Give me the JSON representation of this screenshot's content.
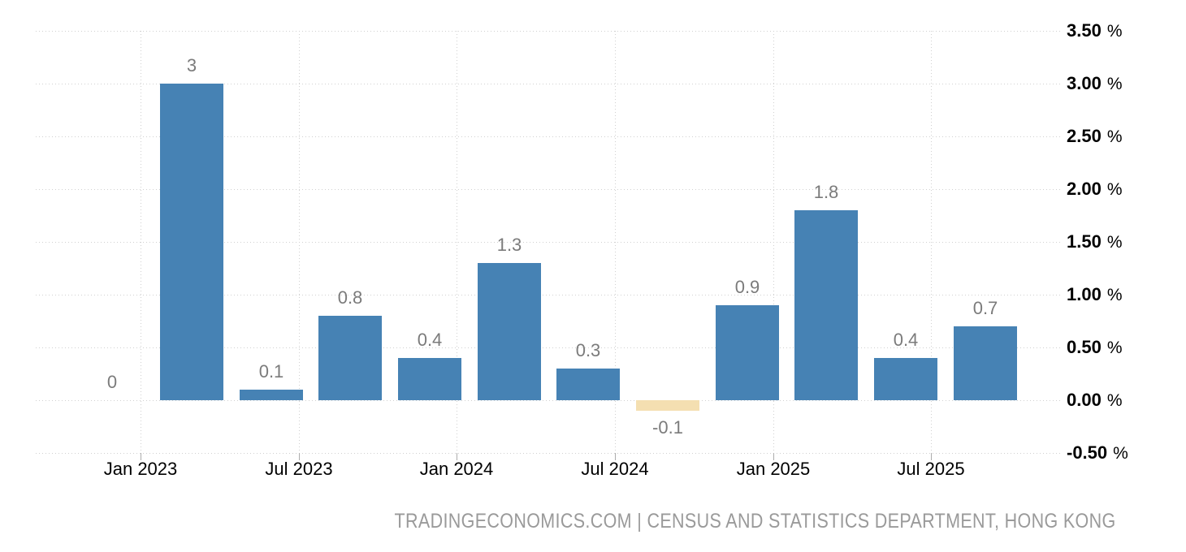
{
  "chart_data": {
    "type": "bar",
    "title": "",
    "xlabel": "",
    "ylabel": "",
    "values": [
      0,
      3,
      0.1,
      0.8,
      0.4,
      1.3,
      0.3,
      -0.1,
      0.9,
      1.8,
      0.4,
      0.7
    ],
    "bar_labels": [
      "0",
      "3",
      "0.1",
      "0.8",
      "0.4",
      "1.3",
      "0.3",
      "-0.1",
      "0.9",
      "1.8",
      "0.4",
      "0.7"
    ],
    "highlight_index": 7,
    "x_tick_labels": [
      "Jan 2023",
      "Jul 2023",
      "Jan 2024",
      "Jul 2024",
      "Jan 2025",
      "Jul 2025"
    ],
    "y_tick_labels": [
      "3.50 %",
      "3.00 %",
      "2.50 %",
      "2.00 %",
      "1.50 %",
      "1.00 %",
      "0.50 %",
      "0.00 %",
      "-0.50 %"
    ],
    "y_axis_unit": "%",
    "ylim": [
      -0.5,
      3.5
    ],
    "y_tick_step": 0.5,
    "grid": "dotted",
    "legend": "none",
    "colors": {
      "bar": "#4682B4",
      "highlight_bar": "#F4DFB1",
      "gridline": "#D0D0D0",
      "value_label": "#7B7B7B",
      "axis_text": "#000000",
      "footer_text": "#9A9A9A",
      "background": "#FFFFFF"
    }
  },
  "footer": {
    "text": "TRADINGECONOMICS.COM | CENSUS AND STATISTICS DEPARTMENT, HONG KONG"
  }
}
